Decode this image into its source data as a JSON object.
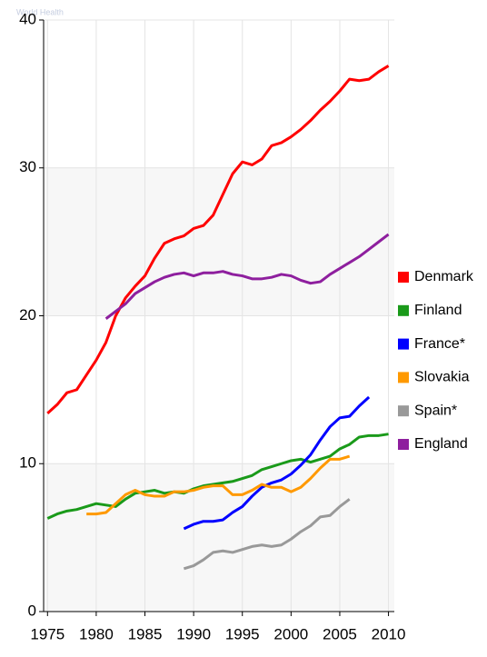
{
  "chart_data": {
    "type": "line",
    "watermark": "World Health",
    "x": [
      1975,
      1976,
      1977,
      1978,
      1979,
      1980,
      1981,
      1982,
      1983,
      1984,
      1985,
      1986,
      1987,
      1988,
      1989,
      1990,
      1991,
      1992,
      1993,
      1994,
      1995,
      1996,
      1997,
      1998,
      1999,
      2000,
      2001,
      2002,
      2003,
      2004,
      2005,
      2006,
      2007,
      2008,
      2009,
      2010
    ],
    "xlim": [
      1974.6,
      2010.6
    ],
    "xticks": [
      1975,
      1980,
      1985,
      1990,
      1995,
      2000,
      2005,
      2010
    ],
    "ylim": [
      0,
      40
    ],
    "yticks": [
      0,
      10,
      20,
      30,
      40
    ],
    "grid": true,
    "legend": "right",
    "series": [
      {
        "name": "Denmark",
        "color": "#ff0000",
        "values": [
          13.4,
          14,
          14.8,
          15,
          16,
          17,
          18.2,
          20,
          21.2,
          22,
          22.7,
          23.9,
          24.9,
          25.2,
          25.4,
          25.9,
          26.1,
          26.8,
          28.2,
          29.6,
          30.4,
          30.2,
          30.6,
          31.5,
          31.7,
          32.1,
          32.6,
          33.2,
          33.9,
          34.5,
          35.2,
          36.0,
          35.9,
          36.0,
          36.5,
          36.9
        ]
      },
      {
        "name": "Finland",
        "color": "#1a9a1a",
        "values": [
          6.3,
          6.6,
          6.8,
          6.9,
          7.1,
          7.3,
          7.2,
          7.1,
          7.6,
          8.0,
          8.1,
          8.2,
          8.0,
          8.1,
          8.0,
          8.3,
          8.5,
          8.6,
          8.7,
          8.8,
          9.0,
          9.2,
          9.6,
          9.8,
          10.0,
          10.2,
          10.3,
          10.1,
          10.3,
          10.5,
          11.0,
          11.3,
          11.8,
          11.9,
          11.9,
          12.0
        ]
      },
      {
        "name": "France*",
        "color": "#0000ff",
        "values": [
          null,
          null,
          null,
          null,
          null,
          null,
          null,
          null,
          null,
          null,
          null,
          null,
          null,
          null,
          5.6,
          5.9,
          6.1,
          6.1,
          6.2,
          6.7,
          7.1,
          7.8,
          8.4,
          8.7,
          8.9,
          9.3,
          9.9,
          10.6,
          11.6,
          12.5,
          13.1,
          13.2,
          13.9,
          14.5,
          null,
          null
        ]
      },
      {
        "name": "Slovakia",
        "color": "#ff9900",
        "values": [
          null,
          null,
          null,
          null,
          6.6,
          6.6,
          6.7,
          7.3,
          7.9,
          8.2,
          7.9,
          7.8,
          7.8,
          8.1,
          8.1,
          8.2,
          8.4,
          8.5,
          8.5,
          7.9,
          7.9,
          8.2,
          8.6,
          8.4,
          8.4,
          8.1,
          8.4,
          9.0,
          9.7,
          10.3,
          10.3,
          10.5,
          null,
          null,
          null,
          null
        ]
      },
      {
        "name": "Spain*",
        "color": "#999999",
        "values": [
          null,
          null,
          null,
          null,
          null,
          null,
          null,
          null,
          null,
          null,
          null,
          null,
          null,
          null,
          2.9,
          3.1,
          3.5,
          4.0,
          4.1,
          4.0,
          4.2,
          4.4,
          4.5,
          4.4,
          4.5,
          4.9,
          5.4,
          5.8,
          6.4,
          6.5,
          7.1,
          7.6,
          null,
          null,
          null,
          null
        ]
      },
      {
        "name": "England",
        "color": "#8e1f9e",
        "values": [
          null,
          null,
          null,
          null,
          null,
          null,
          19.8,
          20.3,
          20.8,
          21.5,
          21.9,
          22.3,
          22.6,
          22.8,
          22.9,
          22.7,
          22.9,
          22.9,
          23.0,
          22.8,
          22.7,
          22.5,
          22.5,
          22.6,
          22.8,
          22.7,
          22.4,
          22.2,
          22.3,
          22.8,
          23.2,
          23.6,
          24.0,
          24.5,
          25.0,
          25.5
        ]
      }
    ]
  }
}
